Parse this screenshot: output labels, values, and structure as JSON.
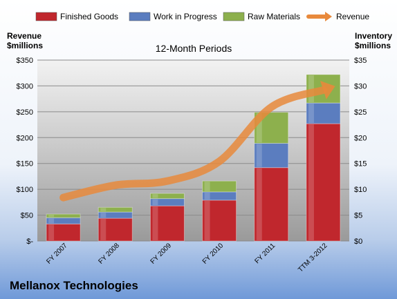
{
  "company": "Mellanox Technologies",
  "colors": {
    "finished_goods": "#c0272d",
    "work_in_progress": "#5b7dbf",
    "raw_materials": "#8db04d",
    "revenue": "#e8893c"
  },
  "chart_data": {
    "type": "bar",
    "stacked": true,
    "title": "12-Month Periods",
    "categories": [
      "FY 2007",
      "FY 2008",
      "FY 2009",
      "FY 2010",
      "FY 2011",
      "TTM 3-2012"
    ],
    "series": [
      {
        "name": "Finished Goods",
        "axis": "right",
        "values": [
          3.3,
          4.4,
          6.8,
          7.9,
          14.2,
          22.7
        ]
      },
      {
        "name": "Work in Progress",
        "axis": "right",
        "values": [
          1.2,
          1.2,
          1.4,
          1.6,
          4.7,
          4.0
        ]
      },
      {
        "name": "Raw Materials",
        "axis": "right",
        "values": [
          0.7,
          0.9,
          1.0,
          2.1,
          6.0,
          5.5
        ]
      },
      {
        "name": "Revenue",
        "type": "line",
        "axis": "left",
        "values": [
          84,
          108,
          116,
          154,
          259,
          292
        ]
      }
    ],
    "y_left": {
      "label_line1": "Revenue",
      "label_line2": "$millions",
      "range": [
        0,
        350
      ],
      "ticks": [
        "$-",
        "$50",
        "$100",
        "$150",
        "$200",
        "$250",
        "$300",
        "$350"
      ]
    },
    "y_right": {
      "label_line1": "Inventory",
      "label_line2": "$millions",
      "range": [
        0,
        35
      ],
      "ticks": [
        "$0",
        "$5",
        "$10",
        "$15",
        "$20",
        "$25",
        "$30",
        "$35"
      ]
    },
    "grid": true,
    "legend": "top"
  }
}
